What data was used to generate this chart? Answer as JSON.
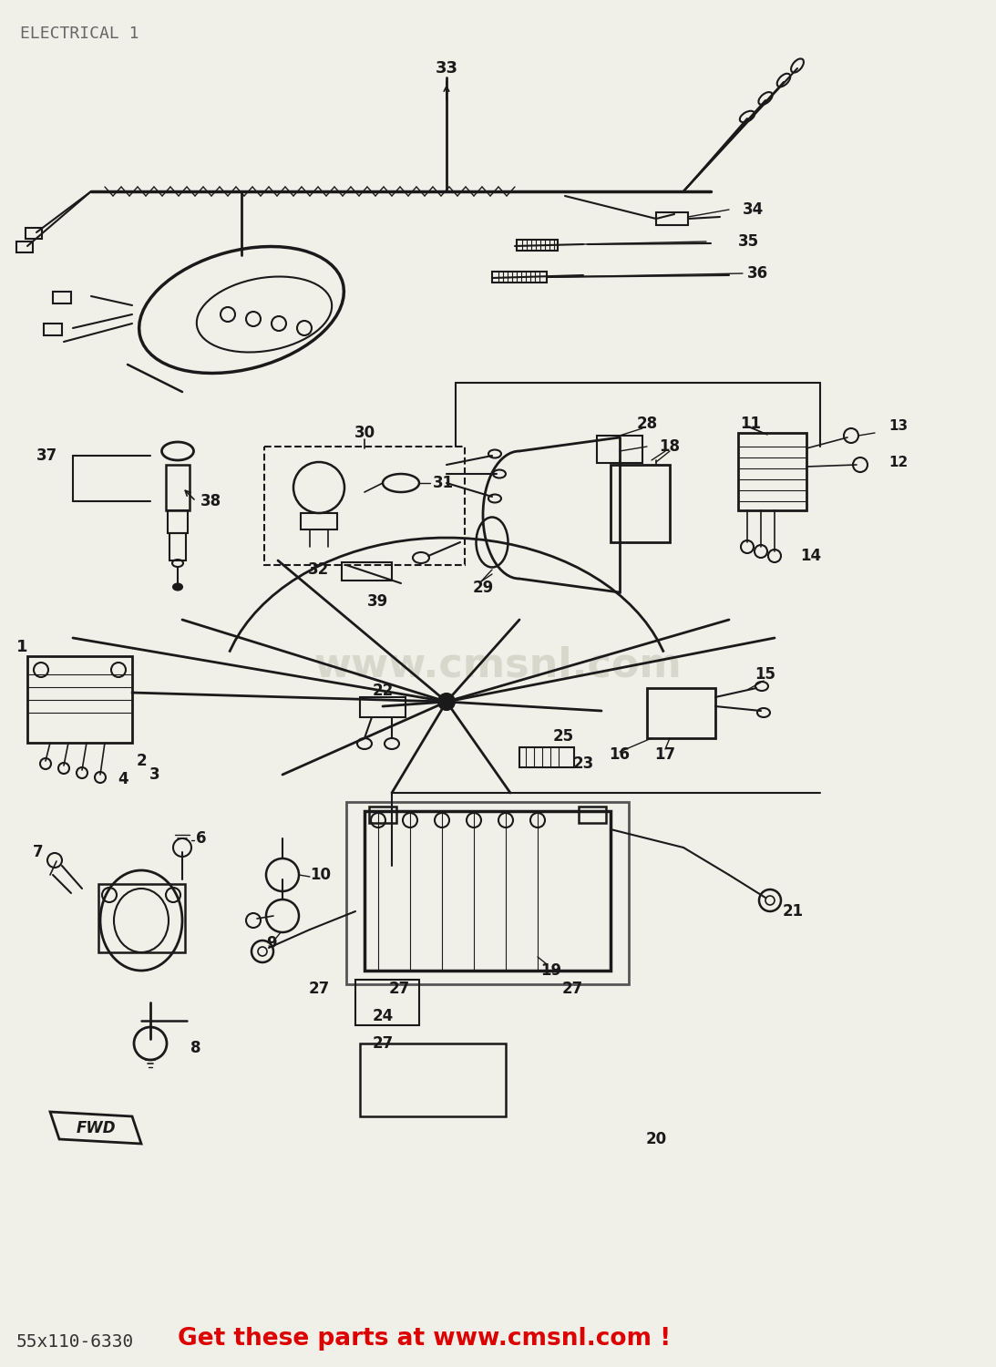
{
  "title": "ELECTRICAL 1",
  "title_color": "#666666",
  "title_fontsize": 13,
  "bg_color": "#f0efe8",
  "fg_color": "#1a1a1a",
  "watermark_text": "www.cmsnl.com",
  "watermark_color": "#c8c8b8",
  "bottom_black": "55x110-6330",
  "bottom_red": "Get these parts at www.cmsnl.com !",
  "bottom_red_color": "#dd0000",
  "bottom_black_color": "#333333",
  "figsize": [
    10.93,
    15.0
  ],
  "dpi": 100
}
